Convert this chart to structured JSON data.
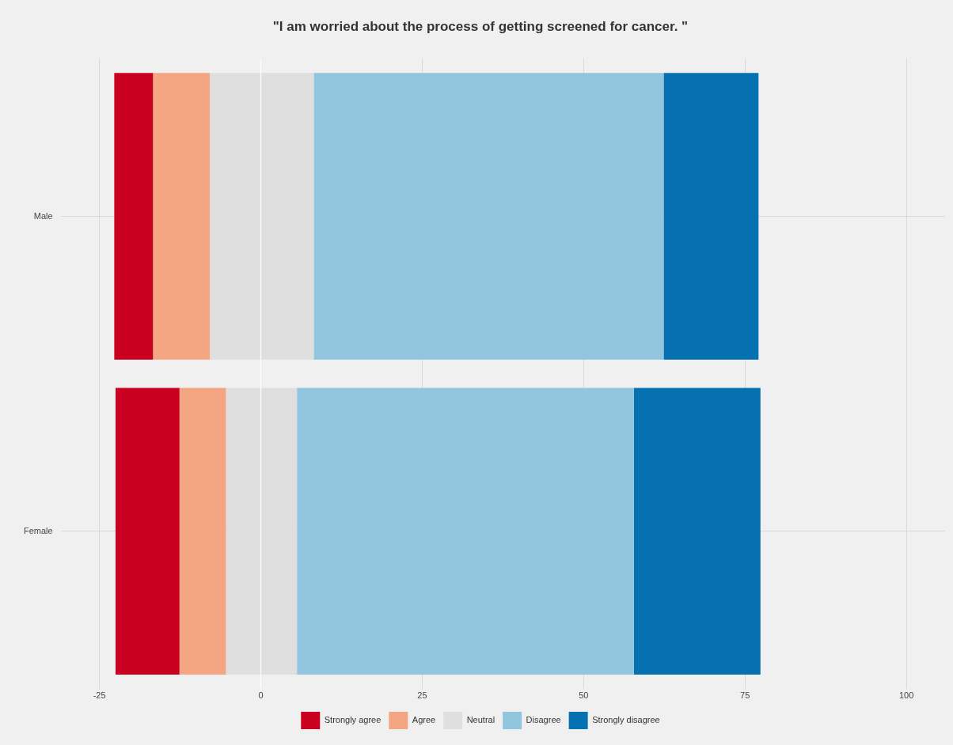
{
  "chart_data": {
    "type": "bar",
    "title": "\"I am worried about the process of getting screened for cancer. \"",
    "orientation": "horizontal",
    "categories": [
      "Male",
      "Female"
    ],
    "series": [
      {
        "name": "Strongly agree",
        "color": "#ca0020",
        "base": [
          -22.7,
          -22.5
        ],
        "values": [
          6.0,
          9.9
        ]
      },
      {
        "name": "Agree",
        "color": "#f4a582",
        "base": [
          -16.7,
          -12.6
        ],
        "values": [
          8.8,
          7.2
        ]
      },
      {
        "name": "Neutral",
        "color": "#dfdfdf",
        "base": [
          -7.9,
          -5.4
        ],
        "values": [
          16.1,
          11.0
        ]
      },
      {
        "name": "Disagree",
        "color": "#92c5de",
        "base": [
          8.2,
          5.6
        ],
        "values": [
          54.2,
          52.2
        ]
      },
      {
        "name": "Strongly disagree",
        "color": "#0571b0",
        "base": [
          62.4,
          57.8
        ],
        "values": [
          14.7,
          19.6
        ]
      }
    ],
    "xlim": [
      -31,
      106
    ],
    "xticks": [
      -25,
      0,
      25,
      50,
      75,
      100
    ],
    "ref_lines": [
      {
        "axis": "x",
        "value": 0,
        "color": "#ffffff"
      }
    ],
    "grid": true,
    "legend": "bottom"
  }
}
